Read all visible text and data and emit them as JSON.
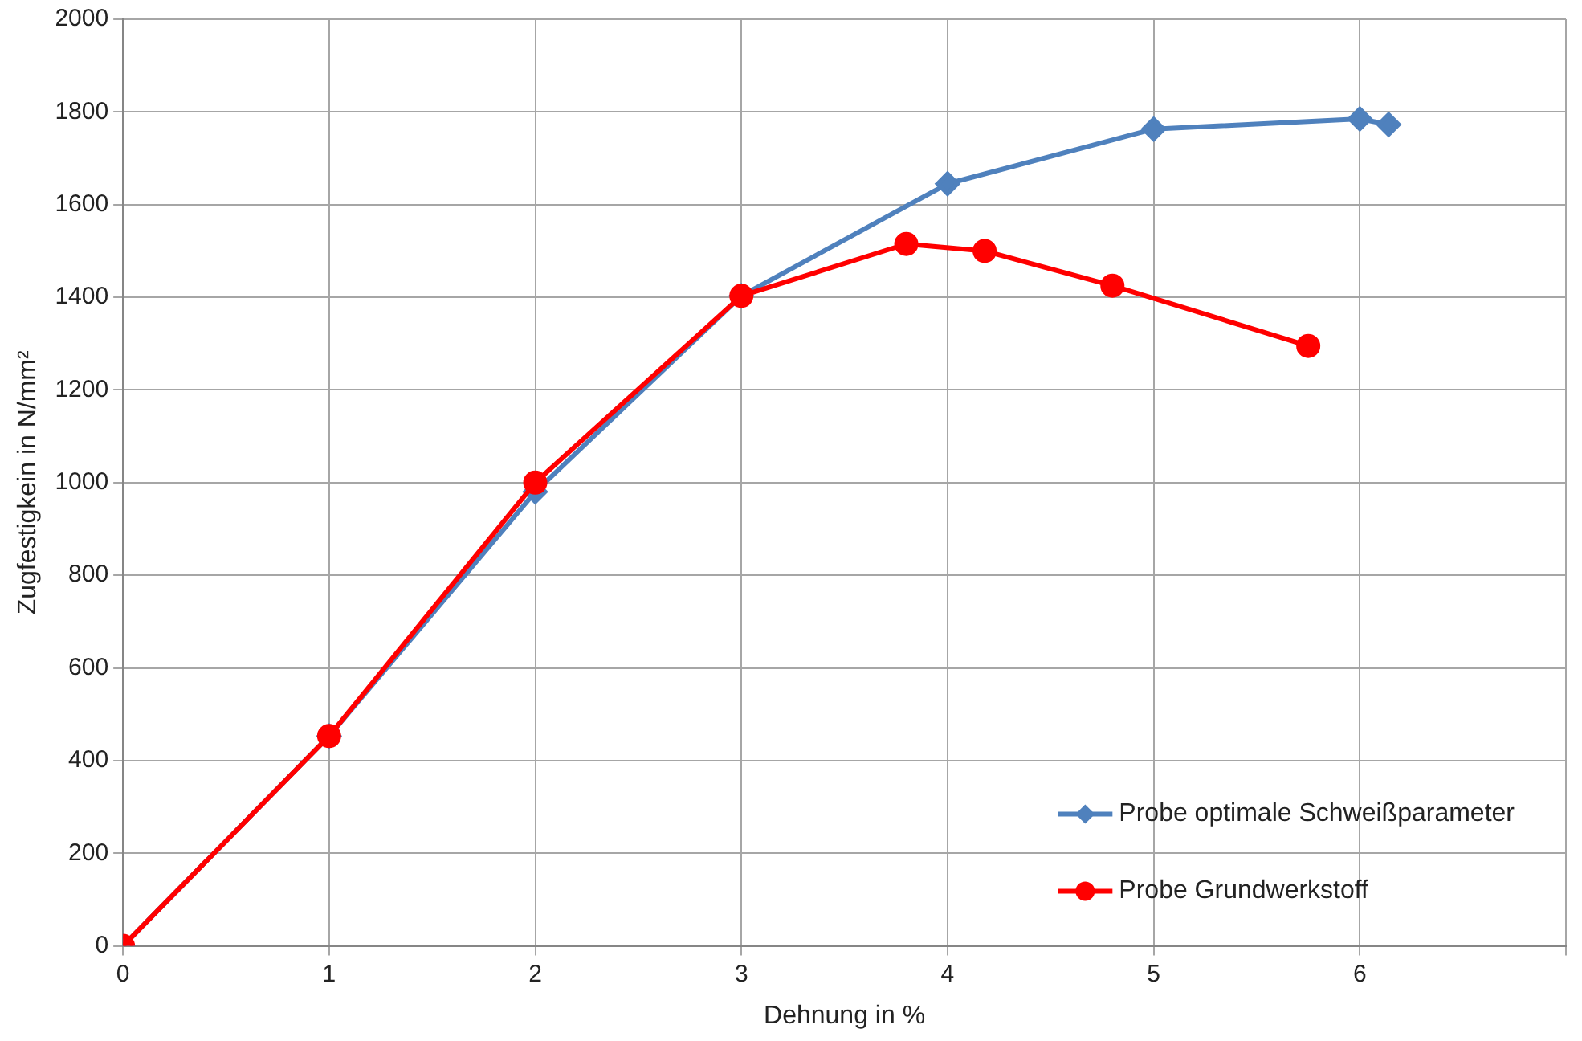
{
  "chart_data": {
    "type": "line",
    "xlabel": "Dehnung in %",
    "ylabel": "Zugfestigkein in N/mm²",
    "xlim": [
      0,
      7
    ],
    "xticks": [
      0,
      1,
      2,
      3,
      4,
      5,
      6,
      {
        "value": 7,
        "label": null
      }
    ],
    "ylim": [
      0,
      2000
    ],
    "yticks": [
      0,
      200,
      400,
      600,
      800,
      1000,
      1200,
      1400,
      1600,
      1800,
      2000
    ],
    "grid": true,
    "legend": "bottom right",
    "line_style": "solid",
    "series": [
      {
        "name": "Probe optimale Schweißparameter",
        "color": "#4f81bd",
        "marker": "diamond",
        "x": [
          0,
          1,
          2,
          3,
          4,
          5,
          6,
          6.14
        ],
        "values": [
          0,
          453,
          980,
          1403,
          1645,
          1763,
          1785,
          1773
        ]
      },
      {
        "name": "Probe Grundwerkstoff",
        "color": "#ff0000",
        "marker": "circle",
        "x": [
          0,
          1,
          2,
          3,
          3.8,
          4.18,
          4.8,
          5.75
        ],
        "values": [
          0,
          453,
          1000,
          1403,
          1515,
          1500,
          1425,
          1295
        ]
      }
    ]
  }
}
